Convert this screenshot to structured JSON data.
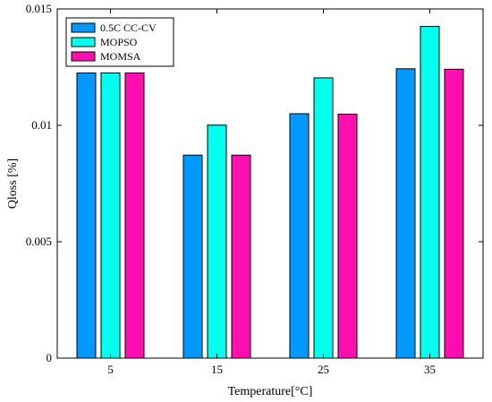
{
  "chart_data": {
    "type": "bar",
    "categories": [
      "5",
      "15",
      "25",
      "35"
    ],
    "series": [
      {
        "name": "0.5C CC-CV",
        "color": "#0099ff",
        "values": [
          0.01225,
          0.00872,
          0.0105,
          0.01243
        ]
      },
      {
        "name": "MOPSO",
        "color": "#00ffee",
        "values": [
          0.01225,
          0.01001,
          0.01204,
          0.01425
        ]
      },
      {
        "name": "MOMSA",
        "color": "#ff0fb0",
        "values": [
          0.01225,
          0.00872,
          0.01048,
          0.01241
        ]
      }
    ],
    "xlabel": "Temperature[°C]",
    "ylabel": "Qloss [%]",
    "ylim": [
      0,
      0.015
    ],
    "yticks": [
      0,
      0.005,
      0.01,
      0.015
    ],
    "ytick_labels": [
      "0",
      "0.005",
      "0.01",
      "0.015"
    ],
    "grid": false,
    "legend_position": "top-left"
  }
}
